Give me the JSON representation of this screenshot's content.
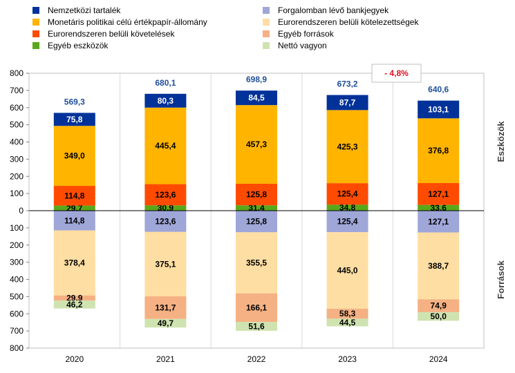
{
  "chart_data": {
    "type": "bar",
    "stacked": true,
    "diverging": true,
    "categories": [
      "2020",
      "2021",
      "2022",
      "2023",
      "2024"
    ],
    "ylim": [
      -800,
      800
    ],
    "yticks": [
      800,
      700,
      600,
      500,
      400,
      300,
      200,
      100,
      0,
      100,
      200,
      300,
      400,
      500,
      600,
      700,
      800
    ],
    "ylabel_upper": "Eszközök",
    "ylabel_lower": "Források",
    "grid": true,
    "legend_position": "top",
    "totals_upper": [
      "569,3",
      "680,1",
      "698,9",
      "673,2",
      "640,6"
    ],
    "change_annotation": "- 4,8%",
    "assets_series": [
      {
        "name": "Egyéb eszközök",
        "color": "#5aa81a",
        "values": [
          29.7,
          30.9,
          31.4,
          34.8,
          33.6
        ],
        "labels": [
          "29,7",
          "30,9",
          "31,4",
          "34,8",
          "33,6"
        ]
      },
      {
        "name": "Eurorendszeren belüli követelések",
        "color": "#ff4b00",
        "values": [
          114.8,
          123.6,
          125.8,
          125.4,
          127.1
        ],
        "labels": [
          "114,8",
          "123,6",
          "125,8",
          "125,4",
          "127,1"
        ]
      },
      {
        "name": "Monetáris politikai célú értékpapír-állomány",
        "color": "#ffb400",
        "values": [
          349.0,
          445.4,
          457.3,
          425.3,
          376.8
        ],
        "labels": [
          "349,0",
          "445,4",
          "457,3",
          "425,3",
          "376,8"
        ]
      },
      {
        "name": "Nemzetközi tartalék",
        "color": "#003299",
        "values": [
          75.8,
          80.3,
          84.5,
          87.7,
          103.1
        ],
        "labels": [
          "75,8",
          "80,3",
          "84,5",
          "87,7",
          "103,1"
        ]
      }
    ],
    "liabilities_series": [
      {
        "name": "Forgalomban lévő bankjegyek",
        "color": "#9fa6d8",
        "values": [
          114.8,
          123.6,
          125.8,
          125.4,
          127.1
        ],
        "labels": [
          "114,8",
          "123,6",
          "125,8",
          "125,4",
          "127,1"
        ]
      },
      {
        "name": "Eurorendszeren belüli kötelezettségek",
        "color": "#ffdea3",
        "values": [
          378.4,
          375.1,
          355.5,
          445.0,
          388.7
        ],
        "labels": [
          "378,4",
          "375,1",
          "355,5",
          "445,0",
          "388,7"
        ]
      },
      {
        "name": "Egyéb források",
        "color": "#f5b183",
        "values": [
          29.9,
          131.7,
          166.1,
          58.3,
          74.9
        ],
        "labels": [
          "29,9",
          "131,7",
          "166,1",
          "58,3",
          "74,9"
        ]
      },
      {
        "name": "Nettó vagyon",
        "color": "#cfe3b0",
        "values": [
          46.2,
          49.7,
          51.6,
          44.5,
          50.0
        ],
        "labels": [
          "46,2",
          "49,7",
          "51,6",
          "44,5",
          "50,0"
        ]
      }
    ],
    "legend": [
      {
        "name": "Nemzetközi tartalék",
        "color": "#003299"
      },
      {
        "name": "Forgalomban lévő bankjegyek",
        "color": "#9fa6d8"
      },
      {
        "name": "Monetáris politikai célú értékpapír-állomány",
        "color": "#ffb400"
      },
      {
        "name": "Eurorendszeren belüli kötelezettségek",
        "color": "#ffdea3"
      },
      {
        "name": "Eurorendszeren belüli követelések",
        "color": "#ff4b00"
      },
      {
        "name": "Egyéb források",
        "color": "#f5b183"
      },
      {
        "name": "Egyéb eszközök",
        "color": "#5aa81a"
      },
      {
        "name": "Nettó vagyon",
        "color": "#cfe3b0"
      }
    ]
  }
}
